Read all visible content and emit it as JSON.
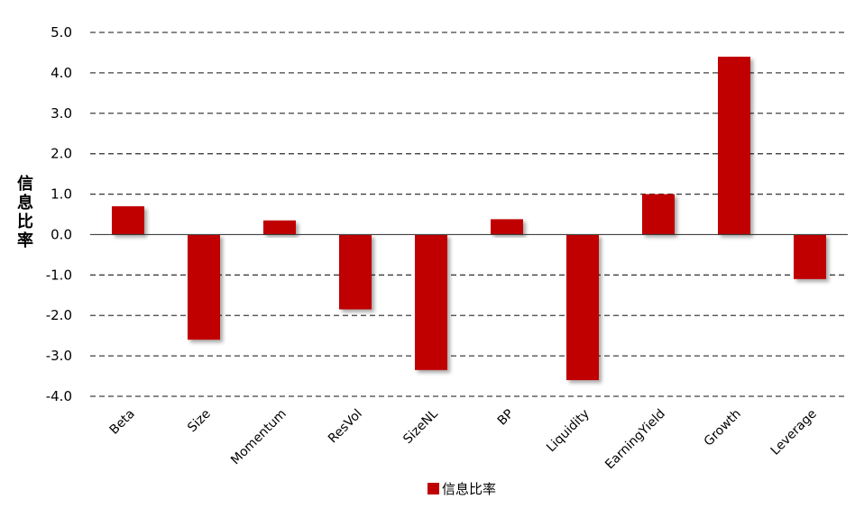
{
  "chart_data": {
    "type": "bar",
    "title": "",
    "xlabel": "",
    "ylabel": "信息比率",
    "categories": [
      "Beta",
      "Size",
      "Momentum",
      "ResVol",
      "SizeNL",
      "BP",
      "Liquidity",
      "EarningYield",
      "Growth",
      "Leverage"
    ],
    "series": [
      {
        "name": "信息比率",
        "values": [
          0.7,
          -2.6,
          0.35,
          -1.85,
          -3.35,
          0.38,
          -3.6,
          1.0,
          4.4,
          -1.1
        ]
      }
    ],
    "ylim": [
      -4.0,
      5.0
    ],
    "yticks": [
      "5.0",
      "4.0",
      "3.0",
      "2.0",
      "1.0",
      "0.0",
      "-1.0",
      "-2.0",
      "-3.0",
      "-4.0"
    ],
    "ytick_values": [
      5,
      4,
      3,
      2,
      1,
      0,
      -1,
      -2,
      -3,
      -4
    ],
    "grid": true,
    "legend_position": "bottom-center",
    "bar_color": "#C00000"
  }
}
